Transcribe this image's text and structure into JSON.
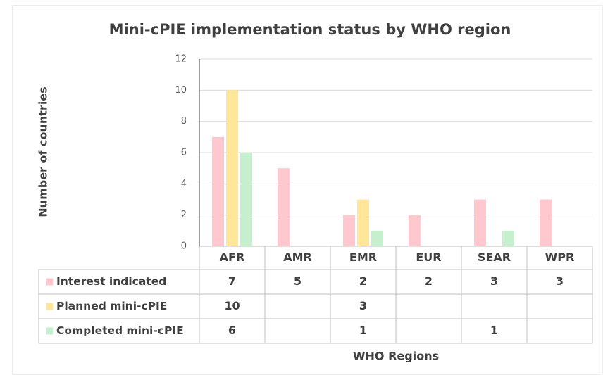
{
  "chart_data": {
    "type": "bar",
    "title": "Mini-cPIE implementation status by WHO region",
    "y_label": "Number of countries",
    "x_label": "WHO Regions",
    "categories": [
      "AFR",
      "AMR",
      "EMR",
      "EUR",
      "SEAR",
      "WPR"
    ],
    "series": [
      {
        "name": "Interest indicated",
        "color": "#ffc7ce",
        "values": [
          7,
          5,
          2,
          2,
          3,
          3
        ]
      },
      {
        "name": "Planned mini-cPIE",
        "color": "#ffe699",
        "values": [
          10,
          null,
          3,
          null,
          null,
          null
        ]
      },
      {
        "name": "Completed mini-cPIE",
        "color": "#c6efce",
        "values": [
          6,
          null,
          1,
          null,
          1,
          null
        ]
      }
    ],
    "ylim": [
      0,
      12
    ],
    "yticks": [
      0,
      2,
      4,
      6,
      8,
      10,
      12
    ],
    "grid": true
  }
}
